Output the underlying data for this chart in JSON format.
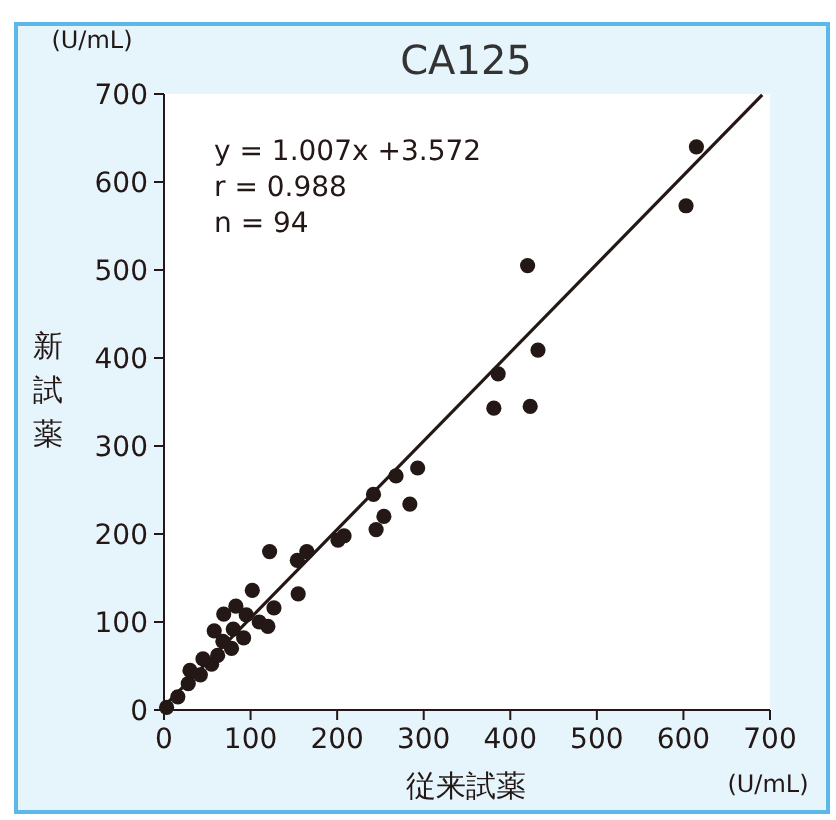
{
  "chart_data": {
    "type": "scatter",
    "title": "CA125",
    "xlabel": "従来試薬",
    "ylabel": "新試薬",
    "annotations": [
      "(U/mL)",
      "(U/mL)",
      "y = 1.007x +3.572",
      "r = 0.988",
      "n = 94"
    ],
    "xlim": [
      0,
      700
    ],
    "ylim": [
      0,
      700
    ],
    "xticks": [
      0,
      100,
      200,
      300,
      400,
      500,
      600,
      700
    ],
    "yticks": [
      0,
      100,
      200,
      300,
      400,
      500,
      600,
      700
    ],
    "grid": false,
    "series": [
      {
        "color": "#231815",
        "marker": "circle",
        "x": [
          3,
          16,
          28,
          42,
          55,
          30,
          45,
          62,
          68,
          58,
          78,
          80,
          92,
          95,
          110,
          69,
          83,
          102,
          155,
          127,
          120,
          122,
          154,
          165,
          201,
          208,
          245,
          242,
          254,
          268,
          284,
          293,
          381,
          386,
          423,
          432,
          420,
          603,
          615
        ],
        "values": [
          3,
          15,
          30,
          40,
          52,
          45,
          58,
          62,
          78,
          90,
          70,
          92,
          82,
          108,
          100,
          109,
          118,
          136,
          132,
          116,
          95,
          180,
          170,
          180,
          193,
          198,
          205,
          245,
          220,
          266,
          234,
          275,
          343,
          382,
          345,
          409,
          505,
          573,
          640
        ]
      },
      {
        "type": "line",
        "color": "#231815",
        "marker": "none",
        "x": [
          0,
          691
        ],
        "values": [
          4,
          699
        ]
      }
    ]
  }
}
